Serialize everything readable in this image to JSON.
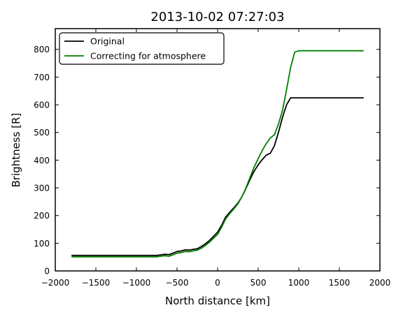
{
  "chart_data": {
    "type": "line",
    "title": "2013-10-02 07:27:03",
    "xlabel": "North distance [km]",
    "ylabel": "Brightness [R]",
    "xlim": [
      -2000,
      2000
    ],
    "ylim": [
      0,
      875
    ],
    "xticks": [
      -2000,
      -1500,
      -1000,
      -500,
      0,
      500,
      1000,
      1500,
      2000
    ],
    "xtick_labels": [
      "−2000",
      "−1500",
      "−1000",
      "−500",
      "0",
      "500",
      "1000",
      "1500",
      "2000"
    ],
    "yticks": [
      0,
      100,
      200,
      300,
      400,
      500,
      600,
      700,
      800
    ],
    "ytick_labels": [
      "0",
      "100",
      "200",
      "300",
      "400",
      "500",
      "600",
      "700",
      "800"
    ],
    "grid": false,
    "legend_position": "top-left",
    "series": [
      {
        "name": "Original",
        "color": "#000000",
        "x": [
          -1800,
          -1000,
          -750,
          -700,
          -650,
          -600,
          -550,
          -500,
          -450,
          -400,
          -350,
          -300,
          -250,
          -200,
          -150,
          -100,
          -50,
          0,
          50,
          100,
          150,
          200,
          250,
          300,
          350,
          400,
          450,
          500,
          550,
          600,
          650,
          700,
          750,
          800,
          850,
          900,
          950,
          1000,
          1100,
          1300,
          1500,
          1800
        ],
        "y": [
          56,
          56,
          56,
          58,
          60,
          59,
          64,
          70,
          72,
          76,
          75,
          78,
          80,
          88,
          98,
          110,
          125,
          140,
          165,
          195,
          212,
          228,
          245,
          268,
          298,
          330,
          360,
          383,
          402,
          418,
          425,
          452,
          500,
          555,
          600,
          625,
          625,
          625,
          625,
          625,
          625,
          625
        ]
      },
      {
        "name": "Correcting for atmosphere",
        "color": "#008000",
        "x": [
          -1800,
          -1000,
          -750,
          -700,
          -650,
          -600,
          -550,
          -500,
          -450,
          -400,
          -350,
          -300,
          -250,
          -200,
          -150,
          -100,
          -50,
          0,
          50,
          100,
          150,
          200,
          250,
          300,
          350,
          400,
          450,
          500,
          550,
          600,
          650,
          700,
          750,
          800,
          850,
          900,
          950,
          1000,
          1100,
          1300,
          1500,
          1800
        ],
        "y": [
          51,
          51,
          51,
          53,
          55,
          53,
          58,
          64,
          66,
          70,
          69,
          72,
          75,
          82,
          92,
          104,
          118,
          132,
          158,
          188,
          207,
          224,
          242,
          268,
          300,
          338,
          375,
          405,
          435,
          460,
          480,
          492,
          530,
          580,
          655,
          735,
          790,
          795,
          795,
          795,
          795,
          795
        ]
      }
    ]
  }
}
